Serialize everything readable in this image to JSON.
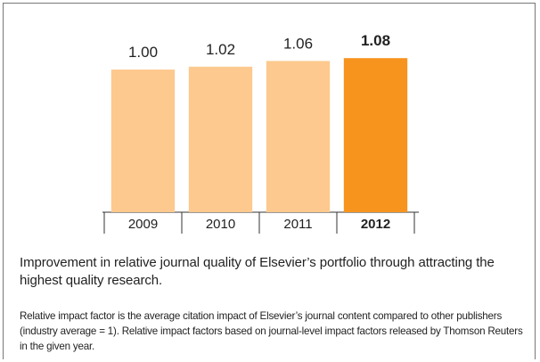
{
  "chart_data": {
    "type": "bar",
    "categories": [
      "2009",
      "2010",
      "2011",
      "2012"
    ],
    "values": [
      1.0,
      1.02,
      1.06,
      1.08
    ],
    "value_labels": [
      "1.00",
      "1.02",
      "1.06",
      "1.08"
    ],
    "colors": [
      "#fdc98e",
      "#fdc98e",
      "#fdc98e",
      "#f7941d"
    ],
    "highlight_index": 3,
    "ylim": [
      0,
      1.3
    ],
    "caption": "Improvement in relative journal quality of Elsevier’s portfolio through attracting the highest quality research.",
    "note": "Relative impact factor is the average citation impact of Elsevier’s journal content compared to other publishers (industry average = 1).  Relative impact factors based on journal-level impact factors released by Thomson Reuters in the given year."
  }
}
